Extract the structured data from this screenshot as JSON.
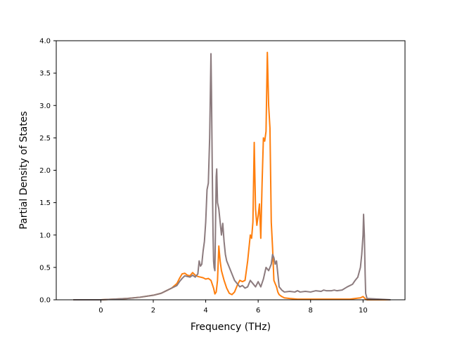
{
  "chart_data": {
    "type": "line",
    "title": "",
    "xlabel": "Frequency (THz)",
    "ylabel": "Partial Density of States",
    "xlim": [
      -1.7,
      11.6
    ],
    "ylim": [
      0,
      4.0
    ],
    "xticks": [
      0,
      2,
      4,
      6,
      8,
      10
    ],
    "xtick_labels": [
      "0",
      "2",
      "4",
      "6",
      "8",
      "10"
    ],
    "yticks": [
      0.0,
      0.5,
      1.0,
      1.5,
      2.0,
      2.5,
      3.0,
      3.5,
      4.0
    ],
    "ytick_labels": [
      "0.0",
      "0.5",
      "1.0",
      "1.5",
      "2.0",
      "2.5",
      "3.0",
      "3.5",
      "4.0"
    ],
    "grid": false,
    "legend": "none",
    "series": [
      {
        "color": "#ff7f0e",
        "x": [
          -1.05,
          0.0,
          0.5,
          1.0,
          1.5,
          2.0,
          2.3,
          2.5,
          2.7,
          2.9,
          3.0,
          3.1,
          3.2,
          3.3,
          3.4,
          3.5,
          3.6,
          3.7,
          3.8,
          3.9,
          4.0,
          4.1,
          4.2,
          4.3,
          4.35,
          4.4,
          4.45,
          4.5,
          4.55,
          4.6,
          4.7,
          4.8,
          4.9,
          5.0,
          5.1,
          5.2,
          5.3,
          5.4,
          5.5,
          5.6,
          5.7,
          5.75,
          5.8,
          5.85,
          5.9,
          5.95,
          6.0,
          6.05,
          6.1,
          6.15,
          6.2,
          6.25,
          6.3,
          6.35,
          6.4,
          6.45,
          6.5,
          6.55,
          6.6,
          6.65,
          6.7,
          6.75,
          6.8,
          6.9,
          7.0,
          7.2,
          7.5,
          8.0,
          8.5,
          9.0,
          9.5,
          9.9,
          10.0,
          10.05,
          10.1,
          10.15,
          11.05
        ],
        "y": [
          0.0,
          0.0,
          0.01,
          0.02,
          0.04,
          0.07,
          0.1,
          0.14,
          0.18,
          0.25,
          0.33,
          0.4,
          0.41,
          0.38,
          0.37,
          0.42,
          0.38,
          0.36,
          0.35,
          0.34,
          0.32,
          0.33,
          0.3,
          0.18,
          0.09,
          0.12,
          0.3,
          0.83,
          0.6,
          0.45,
          0.3,
          0.18,
          0.1,
          0.08,
          0.12,
          0.22,
          0.3,
          0.28,
          0.3,
          0.6,
          1.0,
          0.95,
          1.2,
          2.43,
          1.4,
          1.15,
          1.3,
          1.48,
          0.95,
          1.8,
          2.5,
          2.45,
          2.6,
          3.82,
          3.0,
          2.65,
          1.2,
          0.8,
          0.3,
          0.25,
          0.2,
          0.12,
          0.08,
          0.05,
          0.03,
          0.02,
          0.01,
          0.01,
          0.01,
          0.01,
          0.01,
          0.03,
          0.05,
          0.03,
          0.01,
          0.0,
          0.0
        ]
      },
      {
        "color": "#8c7b7e",
        "x": [
          -1.05,
          0.0,
          0.5,
          1.0,
          1.5,
          2.0,
          2.3,
          2.5,
          2.7,
          2.9,
          3.0,
          3.1,
          3.2,
          3.3,
          3.4,
          3.5,
          3.6,
          3.7,
          3.75,
          3.8,
          3.85,
          3.9,
          3.95,
          4.0,
          4.05,
          4.1,
          4.15,
          4.2,
          4.22,
          4.25,
          4.28,
          4.3,
          4.32,
          4.35,
          4.4,
          4.42,
          4.45,
          4.5,
          4.55,
          4.6,
          4.65,
          4.7,
          4.75,
          4.8,
          4.9,
          5.0,
          5.1,
          5.2,
          5.3,
          5.4,
          5.5,
          5.6,
          5.7,
          5.8,
          5.9,
          6.0,
          6.1,
          6.2,
          6.3,
          6.4,
          6.5,
          6.55,
          6.6,
          6.65,
          6.7,
          6.8,
          6.9,
          7.0,
          7.2,
          7.4,
          7.5,
          7.6,
          7.8,
          8.0,
          8.2,
          8.4,
          8.5,
          8.6,
          8.8,
          8.9,
          9.0,
          9.2,
          9.4,
          9.6,
          9.7,
          9.8,
          9.9,
          9.95,
          10.0,
          10.02,
          10.05,
          10.08,
          10.1,
          10.15,
          11.05
        ],
        "y": [
          0.0,
          0.0,
          0.01,
          0.02,
          0.04,
          0.07,
          0.1,
          0.14,
          0.18,
          0.22,
          0.28,
          0.33,
          0.37,
          0.36,
          0.35,
          0.38,
          0.35,
          0.4,
          0.6,
          0.52,
          0.55,
          0.75,
          0.9,
          1.2,
          1.7,
          1.8,
          2.5,
          3.8,
          3.2,
          2.0,
          1.0,
          0.6,
          0.5,
          0.45,
          1.9,
          2.02,
          1.5,
          1.4,
          1.2,
          1.0,
          1.18,
          0.9,
          0.7,
          0.6,
          0.5,
          0.4,
          0.3,
          0.25,
          0.2,
          0.22,
          0.18,
          0.2,
          0.3,
          0.25,
          0.2,
          0.28,
          0.2,
          0.32,
          0.5,
          0.45,
          0.55,
          0.7,
          0.65,
          0.55,
          0.6,
          0.2,
          0.15,
          0.12,
          0.13,
          0.12,
          0.14,
          0.12,
          0.13,
          0.12,
          0.14,
          0.13,
          0.15,
          0.14,
          0.14,
          0.15,
          0.14,
          0.15,
          0.2,
          0.24,
          0.3,
          0.35,
          0.5,
          0.7,
          1.0,
          1.32,
          1.0,
          0.4,
          0.1,
          0.02,
          0.0
        ]
      }
    ]
  }
}
